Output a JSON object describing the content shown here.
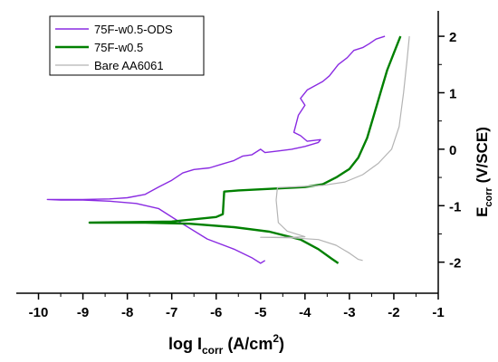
{
  "chart_data": {
    "type": "line",
    "xlabel": {
      "prefix": "log I",
      "sub": "corr",
      "units_open": " (A/cm",
      "units_sup": "2",
      "units_close": ")"
    },
    "ylabel": {
      "prefix": "E",
      "sub": "corr",
      "units": " (V/SCE)"
    },
    "xlim": [
      -10.5,
      -1
    ],
    "ylim": [
      -2.55,
      2.45
    ],
    "x_ticks": [
      -10,
      -9,
      -8,
      -7,
      -6,
      -5,
      -4,
      -3,
      -2,
      -1
    ],
    "y_ticks": [
      -2,
      -1,
      0,
      1,
      2
    ],
    "y_axis_side": "right",
    "legend_placement": "top-left",
    "series": [
      {
        "name": "75F-w0.5-ODS",
        "color": "#8a2be2",
        "points": [
          [
            -4.9,
            -1.97
          ],
          [
            -5.0,
            -2.02
          ],
          [
            -5.2,
            -1.92
          ],
          [
            -5.6,
            -1.77
          ],
          [
            -6.2,
            -1.59
          ],
          [
            -6.8,
            -1.3
          ],
          [
            -7.3,
            -1.05
          ],
          [
            -7.8,
            -0.96
          ],
          [
            -8.4,
            -0.92
          ],
          [
            -9.0,
            -0.9
          ],
          [
            -9.5,
            -0.9
          ],
          [
            -9.8,
            -0.89
          ],
          [
            -9.0,
            -0.89
          ],
          [
            -8.4,
            -0.88
          ],
          [
            -8.0,
            -0.86
          ],
          [
            -7.6,
            -0.8
          ],
          [
            -7.3,
            -0.67
          ],
          [
            -7.0,
            -0.55
          ],
          [
            -6.75,
            -0.42
          ],
          [
            -6.5,
            -0.36
          ],
          [
            -6.15,
            -0.33
          ],
          [
            -5.85,
            -0.26
          ],
          [
            -5.6,
            -0.2
          ],
          [
            -5.4,
            -0.12
          ],
          [
            -5.2,
            -0.1
          ],
          [
            -5.0,
            0.0
          ],
          [
            -4.9,
            -0.06
          ],
          [
            -4.6,
            -0.03
          ],
          [
            -4.3,
            0.0
          ],
          [
            -4.0,
            0.05
          ],
          [
            -3.7,
            0.12
          ],
          [
            -3.65,
            0.17
          ],
          [
            -3.95,
            0.14
          ],
          [
            -4.1,
            0.24
          ],
          [
            -4.25,
            0.3
          ],
          [
            -4.15,
            0.6
          ],
          [
            -4.0,
            0.78
          ],
          [
            -4.1,
            0.9
          ],
          [
            -3.95,
            1.05
          ],
          [
            -3.6,
            1.2
          ],
          [
            -3.45,
            1.3
          ],
          [
            -3.25,
            1.5
          ],
          [
            -3.05,
            1.62
          ],
          [
            -2.9,
            1.75
          ],
          [
            -2.7,
            1.8
          ],
          [
            -2.55,
            1.87
          ],
          [
            -2.4,
            1.95
          ],
          [
            -2.2,
            2.0
          ]
        ]
      },
      {
        "name": "75F-w0.5",
        "color": "#008000",
        "points": [
          [
            -3.25,
            -2.02
          ],
          [
            -3.4,
            -1.94
          ],
          [
            -3.7,
            -1.77
          ],
          [
            -4.1,
            -1.6
          ],
          [
            -4.8,
            -1.46
          ],
          [
            -5.6,
            -1.38
          ],
          [
            -6.6,
            -1.32
          ],
          [
            -7.6,
            -1.3
          ],
          [
            -8.5,
            -1.3
          ],
          [
            -8.85,
            -1.3
          ],
          [
            -8.0,
            -1.29
          ],
          [
            -7.0,
            -1.28
          ],
          [
            -6.5,
            -1.24
          ],
          [
            -6.0,
            -1.2
          ],
          [
            -5.85,
            -1.15
          ],
          [
            -5.82,
            -0.75
          ],
          [
            -5.5,
            -0.73
          ],
          [
            -5.0,
            -0.71
          ],
          [
            -4.5,
            -0.69
          ],
          [
            -4.0,
            -0.67
          ],
          [
            -3.6,
            -0.62
          ],
          [
            -3.3,
            -0.5
          ],
          [
            -3.0,
            -0.35
          ],
          [
            -2.8,
            -0.15
          ],
          [
            -2.6,
            0.2
          ],
          [
            -2.45,
            0.6
          ],
          [
            -2.3,
            1.0
          ],
          [
            -2.15,
            1.4
          ],
          [
            -2.0,
            1.7
          ],
          [
            -1.85,
            2.0
          ]
        ]
      },
      {
        "name": "Bare AA6061",
        "color": "#b4b4b4",
        "points": [
          [
            -2.7,
            -1.97
          ],
          [
            -2.8,
            -1.95
          ],
          [
            -3.0,
            -1.84
          ],
          [
            -3.3,
            -1.7
          ],
          [
            -3.7,
            -1.6
          ],
          [
            -4.3,
            -1.57
          ],
          [
            -5.0,
            -1.56
          ],
          [
            -4.3,
            -1.56
          ],
          [
            -4.0,
            -1.55
          ],
          [
            -4.4,
            -1.45
          ],
          [
            -4.6,
            -1.3
          ],
          [
            -4.65,
            -0.9
          ],
          [
            -4.62,
            -0.68
          ],
          [
            -4.1,
            -0.66
          ],
          [
            -3.6,
            -0.64
          ],
          [
            -3.1,
            -0.58
          ],
          [
            -2.7,
            -0.45
          ],
          [
            -2.35,
            -0.25
          ],
          [
            -2.05,
            0.0
          ],
          [
            -1.88,
            0.4
          ],
          [
            -1.78,
            1.0
          ],
          [
            -1.7,
            1.6
          ],
          [
            -1.65,
            2.0
          ]
        ]
      }
    ]
  }
}
